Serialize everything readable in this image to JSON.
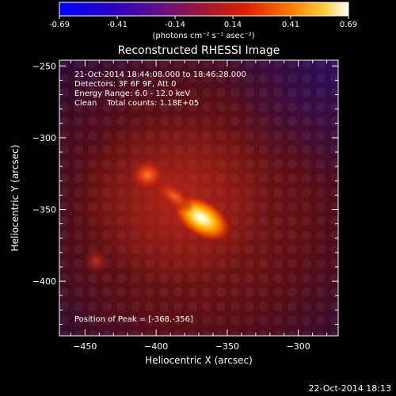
{
  "chart_data": {
    "type": "heatmap",
    "title": "Reconstructed RHESSI Image",
    "xlabel": "Heliocentric X (arcsec)",
    "ylabel": "Heliocentric Y (arcsec)",
    "xlim": [
      -468,
      -272
    ],
    "ylim": [
      -438,
      -246
    ],
    "xticks": [
      -450,
      -400,
      -350,
      -300
    ],
    "yticks": [
      -250,
      -300,
      -350,
      -400
    ],
    "colorbar": {
      "ticks": [
        "-0.69",
        "-0.41",
        "-0.14",
        "0.14",
        "0.41",
        "0.69"
      ],
      "range": [
        -0.69,
        0.69
      ],
      "unit_label": "(photons cm⁻² s⁻¹ asec⁻²)"
    },
    "annotations": [
      "21-Oct-2014 18:44:08.000 to 18:46:28.000",
      "Detectors: 3F 6F 9F, Att 0",
      "Energy Range: 6.0 - 12.0 keV",
      "Clean    Total counts: 1.18E+05"
    ],
    "peak_label": "Position of Peak = [-368,-356]",
    "sources": [
      {
        "x": -368,
        "y": -356,
        "peak": 0.69
      },
      {
        "x": -406,
        "y": -326,
        "peak": 0.3
      },
      {
        "x": -442,
        "y": -386,
        "peak": 0.1
      }
    ]
  },
  "footer": {
    "timestamp": "22-Oct-2014 18:13"
  }
}
